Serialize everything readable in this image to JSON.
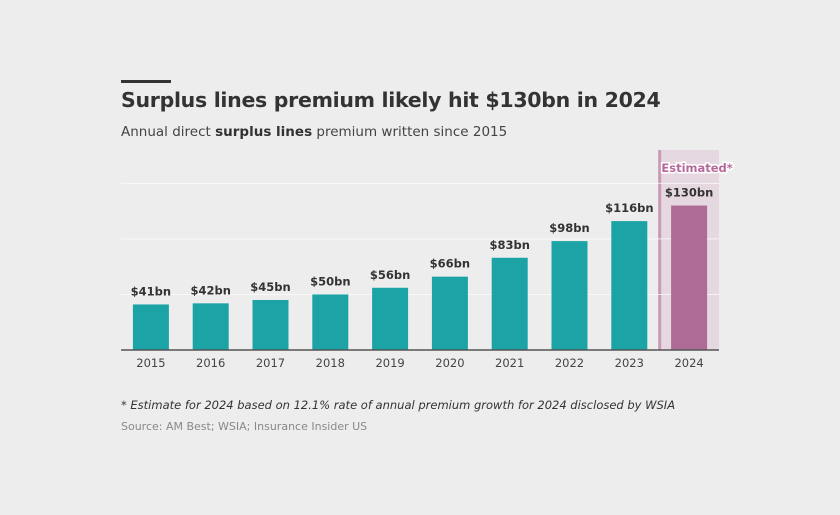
{
  "header": {
    "title": "Surplus lines premium likely hit $130bn in 2024",
    "subtitle_pre": "Annual direct ",
    "subtitle_bold": "surplus lines",
    "subtitle_post": " premium written since 2015"
  },
  "footer": {
    "note": "* Estimate for 2024 based on 12.1% rate of annual premium growth for 2024 disclosed by WSIA",
    "source": "Source: AM Best; WSIA; Insurance Insider US"
  },
  "colors": {
    "actual": "#1ca3a6",
    "estimated": "#ad6b95",
    "estimated_band": "#e6d8e0",
    "estimated_divider": "#c99ab7",
    "estimated_label": "#b5689a"
  },
  "chart_data": {
    "type": "bar",
    "title": "Surplus lines premium likely hit $130bn in 2024",
    "subtitle": "Annual direct surplus lines premium written since 2015",
    "xlabel": "",
    "ylabel": "",
    "units": "$bn",
    "categories": [
      "2015",
      "2016",
      "2017",
      "2018",
      "2019",
      "2020",
      "2021",
      "2022",
      "2023",
      "2024"
    ],
    "values": [
      41,
      42,
      45,
      50,
      56,
      66,
      83,
      98,
      116,
      130
    ],
    "labels": [
      "$41bn",
      "$42bn",
      "$45bn",
      "$50bn",
      "$56bn",
      "$66bn",
      "$83bn",
      "$98bn",
      "$116bn",
      "$130bn"
    ],
    "estimated": [
      false,
      false,
      false,
      false,
      false,
      false,
      false,
      false,
      false,
      true
    ],
    "estimated_label": "Estimated*",
    "ylim": [
      0,
      180
    ],
    "gridlines": [
      50,
      100,
      150
    ],
    "grid": true,
    "y_tick_labels_visible": false,
    "legend": "none"
  }
}
